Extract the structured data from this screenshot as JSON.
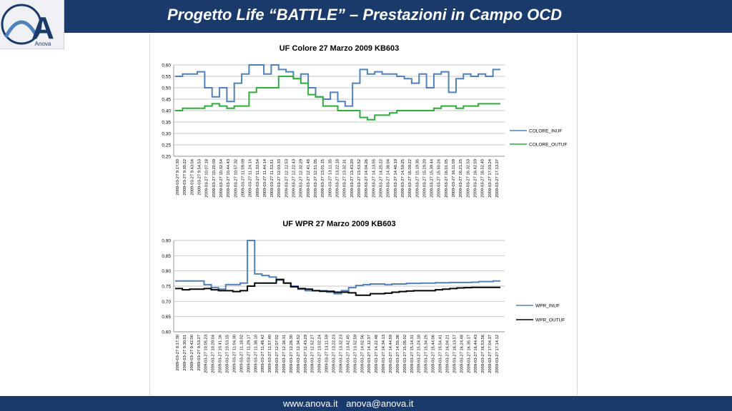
{
  "header": {
    "title": "Progetto Life “BATTLE” – Prestazioni in Campo OCD",
    "logo_text": "Anova",
    "logo_letter": "A"
  },
  "footer": {
    "website": "www.anova.it",
    "email": "anova@anova.it"
  },
  "colors": {
    "header_bg": "#1a3a6b",
    "inuf_blue": "#4f81bd",
    "outuf_green": "#2eae3b",
    "outuf_black": "#000000"
  },
  "chart_data": [
    {
      "type": "line",
      "title": "UF Colore 27 Marzo 2009 KB603",
      "ylim": [
        0.2,
        0.6
      ],
      "yticks": [
        "0,20",
        "0,25",
        "0,30",
        "0,35",
        "0,40",
        "0,45",
        "0,50",
        "0,55",
        "0,60"
      ],
      "grid": true,
      "legend_position": "right",
      "x": [
        "2009-03-27 9.17.30",
        "2009-03-27 9.30.22",
        "2009-03-27 9.43.04",
        "2009-03-27 9.54.53",
        "2009-03-27 10.07.18",
        "2009-03-27 10.20.09",
        "2009-03-27 10.32.54",
        "2009-03-27 10.44.43",
        "2009-03-27 10.57.32",
        "2009-03-27 11.09.09",
        "2009-03-27 11.24.14",
        "2009-03-27 11.33.54",
        "2009-03-27 11.44.14",
        "2009-03-27 11.53.51",
        "2009-03-27 12.03.33",
        "2009-03-27 12.12.53",
        "2009-03-27 12.22.43",
        "2009-03-27 12.32.29",
        "2009-03-27 12.41.48",
        "2009-03-27 12.51.05",
        "2009-03-27 13.01.15",
        "2009-03-27 13.11.35",
        "2009-03-27 13.22.18",
        "2009-03-27 13.32.31",
        "2009-03-27 13.43.20",
        "2009-03-27 13.53.52",
        "2009-03-27 14.04.26",
        "2009-03-27 14.13.55",
        "2009-03-27 14.25.22",
        "2009-03-27 14.38.04",
        "2009-03-27 14.48.19",
        "2009-03-27 14.59.25",
        "2009-03-27 15.09.22",
        "2009-03-27 15.19.35",
        "2009-03-27 15.29.20",
        "2009-03-27 15.39.44",
        "2009-03-27 15.50.24",
        "2009-03-27 16.01.05",
        "2009-03-27 16.11.09",
        "2009-03-27 16.21.25",
        "2009-03-27 16.32.53",
        "2009-03-27 16.42.59",
        "2009-03-27 16.52.40",
        "2009-03-27 17.03.24",
        "2009-03-27 17.13.37"
      ],
      "series": [
        {
          "name": "COLORE_INUF",
          "color": "#4f81bd",
          "values": [
            0.55,
            0.56,
            0.56,
            0.57,
            0.5,
            0.46,
            0.5,
            0.44,
            0.52,
            0.56,
            0.6,
            0.6,
            0.56,
            0.6,
            0.58,
            0.57,
            0.54,
            0.56,
            0.5,
            0.46,
            0.45,
            0.48,
            0.44,
            0.42,
            0.52,
            0.58,
            0.56,
            0.57,
            0.56,
            0.56,
            0.55,
            0.54,
            0.52,
            0.56,
            0.5,
            0.56,
            0.57,
            0.48,
            0.54,
            0.56,
            0.55,
            0.56,
            0.55,
            0.58,
            0.58
          ]
        },
        {
          "name": "COLORE_OUTUF",
          "color": "#2eae3b",
          "values": [
            0.4,
            0.41,
            0.41,
            0.41,
            0.42,
            0.43,
            0.42,
            0.41,
            0.42,
            0.42,
            0.48,
            0.5,
            0.5,
            0.5,
            0.55,
            0.55,
            0.54,
            0.52,
            0.47,
            0.46,
            0.42,
            0.42,
            0.4,
            0.4,
            0.4,
            0.37,
            0.36,
            0.38,
            0.38,
            0.39,
            0.4,
            0.4,
            0.4,
            0.4,
            0.4,
            0.41,
            0.42,
            0.42,
            0.41,
            0.42,
            0.42,
            0.43,
            0.43,
            0.43,
            0.43
          ]
        }
      ]
    },
    {
      "type": "line",
      "title": "UF WPR 27 Marzo 2009 KB603",
      "ylim": [
        0.6,
        0.9
      ],
      "yticks": [
        "0,60",
        "0,65",
        "0,70",
        "0,75",
        "0,80",
        "0,85",
        "0,90"
      ],
      "grid": true,
      "legend_position": "right",
      "x": [
        "2009-03-27 9.17.30",
        "2009-03-27 9.30.01",
        "2009-03-27 9.42.00",
        "2009-03-27 9.53.27",
        "2009-03-27 10.05.23",
        "2009-03-27 10.20.04",
        "2009-03-27 10.41.16",
        "2009-03-27 10.53.15",
        "2009-03-27 11.04.30",
        "2009-03-27 11.18.02",
        "2009-03-27 11.29.17",
        "2009-03-27 11.38.10",
        "2009-03-27 11.48.42",
        "2009-03-27 11.57.40",
        "2009-03-27 12.07.02",
        "2009-03-27 12.16.31",
        "2009-03-27 12.26.30",
        "2009-03-27 12.34.52",
        "2009-03-27 12.43.29",
        "2009-03-27 12.52.27",
        "2009-03-27 13.02.24",
        "2009-03-27 13.11.59",
        "2009-03-27 13.22.23",
        "2009-03-27 13.32.23",
        "2009-03-27 13.42.45",
        "2009-03-27 13.52.59",
        "2009-03-27 14.02.56",
        "2009-03-27 14.12.37",
        "2009-03-27 14.22.48",
        "2009-03-27 14.34.13",
        "2009-03-27 14.44.59",
        "2009-03-27 14.55.36",
        "2009-03-27 15.05.02",
        "2009-03-27 15.14.31",
        "2009-03-27 15.24.18",
        "2009-03-27 15.34.25",
        "2009-03-27 15.44.06",
        "2009-03-27 15.54.41",
        "2009-03-27 16.04.21",
        "2009-03-27 16.13.57",
        "2009-03-27 16.24.48",
        "2009-03-27 16.35.17",
        "2009-03-27 16.44.43",
        "2009-03-27 16.53.56",
        "2009-03-27 17.04.37",
        "2009-03-27 17.14.12"
      ],
      "series": [
        {
          "name": "WPR_INUF",
          "color": "#4f81bd",
          "values": [
            0.767,
            0.767,
            0.767,
            0.767,
            0.755,
            0.745,
            0.74,
            0.755,
            0.755,
            0.76,
            0.9,
            0.79,
            0.785,
            0.78,
            0.77,
            0.76,
            0.75,
            0.74,
            0.735,
            0.735,
            0.735,
            0.73,
            0.725,
            0.735,
            0.745,
            0.752,
            0.755,
            0.757,
            0.757,
            0.755,
            0.757,
            0.757,
            0.759,
            0.759,
            0.76,
            0.76,
            0.761,
            0.761,
            0.762,
            0.762,
            0.762,
            0.763,
            0.765,
            0.765,
            0.767,
            0.767
          ]
        },
        {
          "name": "WPR_OUTUF",
          "color": "#000000",
          "values": [
            0.742,
            0.738,
            0.74,
            0.74,
            0.742,
            0.738,
            0.735,
            0.735,
            0.732,
            0.735,
            0.75,
            0.76,
            0.76,
            0.76,
            0.772,
            0.76,
            0.748,
            0.742,
            0.74,
            0.735,
            0.733,
            0.733,
            0.73,
            0.73,
            0.728,
            0.72,
            0.72,
            0.725,
            0.725,
            0.727,
            0.73,
            0.732,
            0.734,
            0.735,
            0.735,
            0.735,
            0.738,
            0.74,
            0.742,
            0.744,
            0.745,
            0.746,
            0.746,
            0.746,
            0.746,
            0.746
          ]
        }
      ]
    }
  ]
}
